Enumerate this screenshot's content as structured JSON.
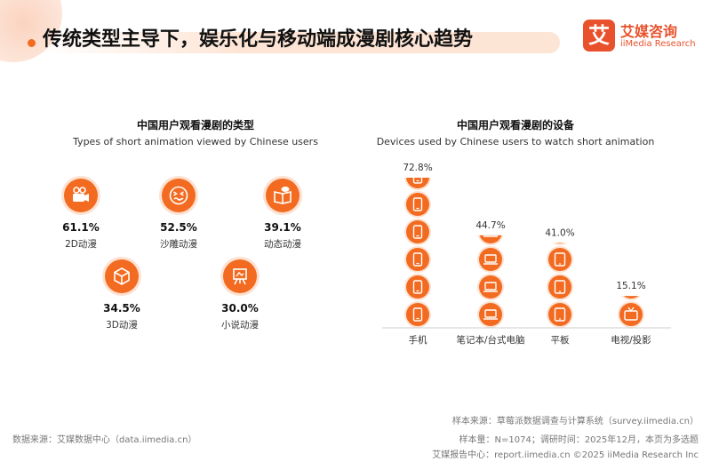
{
  "header": {
    "title": "传统类型主导下，娱乐化与移动端成漫剧核心趋势",
    "brand_logo_char": "艾",
    "brand_cn": "艾媒咨询",
    "brand_en": "iiMedia Research"
  },
  "chart_data": [
    {
      "type": "icon-stat",
      "title": "中国用户观看漫剧的类型",
      "subtitle": "Types of short animation viewed by Chinese users",
      "categories": [
        "2D动漫",
        "沙雕动漫",
        "动态动漫",
        "3D动漫",
        "小说动漫"
      ],
      "values_label": [
        "61.1%",
        "52.5%",
        "39.1%",
        "34.5%",
        "30.0%"
      ],
      "values": [
        61.1,
        52.5,
        39.1,
        34.5,
        30.0
      ],
      "icons": [
        "film-camera-icon",
        "funny-face-icon",
        "open-book-chat-icon",
        "cube-icon",
        "easel-icon"
      ]
    },
    {
      "type": "bar",
      "title": "中国用户观看漫剧的设备",
      "subtitle": "Devices used by Chinese users to watch short animation",
      "categories": [
        "手机",
        "笔记本/台式电脑",
        "平板",
        "电视/投影"
      ],
      "values": [
        72.8,
        44.7,
        41.0,
        15.1
      ],
      "values_label": [
        "72.8%",
        "44.7%",
        "41.0%",
        "15.1%"
      ],
      "icons": [
        "smartphone-icon",
        "laptop-icon",
        "tablet-icon",
        "tv-icon"
      ],
      "ylim": [
        0,
        72.8
      ]
    }
  ],
  "footer": {
    "data_source": "数据来源：艾媒数据中心（data.iimedia.cn）",
    "sample_source": "样本来源：草莓派数据调查与计算系统（survey.iimedia.cn）",
    "sample_info": "样本量：N=1074；调研时间：2025年12月，本页为多选题",
    "report_center": "艾媒报告中心：report.iimedia.cn    ©2025  iiMedia Research  Inc"
  },
  "colors": {
    "accent": "#f26b21",
    "accent_light": "#fde1d1",
    "text": "#333333"
  }
}
